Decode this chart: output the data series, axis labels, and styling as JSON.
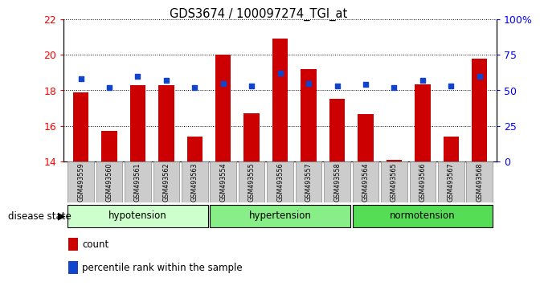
{
  "title": "GDS3674 / 100097274_TGI_at",
  "samples": [
    "GSM493559",
    "GSM493560",
    "GSM493561",
    "GSM493562",
    "GSM493563",
    "GSM493554",
    "GSM493555",
    "GSM493556",
    "GSM493557",
    "GSM493558",
    "GSM493564",
    "GSM493565",
    "GSM493566",
    "GSM493567",
    "GSM493568"
  ],
  "count_values": [
    17.9,
    15.7,
    18.3,
    18.3,
    15.4,
    20.0,
    16.7,
    20.9,
    19.2,
    17.5,
    16.65,
    14.1,
    18.35,
    15.4,
    19.8
  ],
  "percentile_values": [
    58,
    52,
    60,
    57,
    52,
    55,
    53,
    62,
    55,
    53,
    54,
    52,
    57,
    53,
    60
  ],
  "groups": [
    {
      "name": "hypotension",
      "indices": [
        0,
        1,
        2,
        3,
        4
      ],
      "color": "#ccffcc"
    },
    {
      "name": "hypertension",
      "indices": [
        5,
        6,
        7,
        8,
        9
      ],
      "color": "#88ee88"
    },
    {
      "name": "normotension",
      "indices": [
        10,
        11,
        12,
        13,
        14
      ],
      "color": "#55dd55"
    }
  ],
  "ylim_left": [
    14,
    22
  ],
  "ylim_right": [
    0,
    100
  ],
  "yticks_left": [
    14,
    16,
    18,
    20,
    22
  ],
  "yticks_right": [
    0,
    25,
    50,
    75,
    100
  ],
  "bar_color": "#cc0000",
  "dot_color": "#1144cc",
  "bar_width": 0.55,
  "tick_label_bg": "#cccccc",
  "tick_label_bg_border": "#888888"
}
